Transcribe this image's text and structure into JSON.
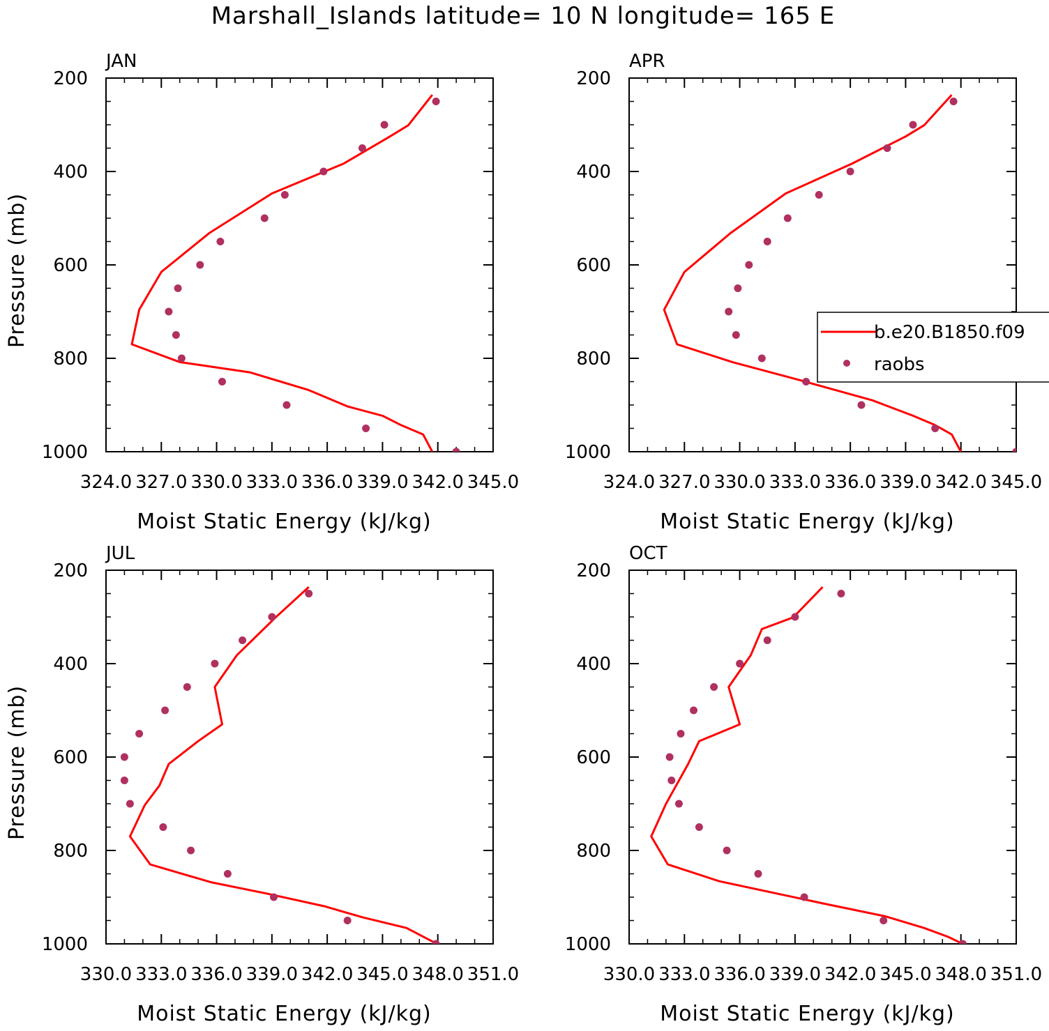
{
  "figure": {
    "title": "Marshall_Islands  latitude= 10 N longitude= 165 E"
  },
  "colors": {
    "model_line": "#ff0000",
    "raobs_marker": "#b03060",
    "axis": "#000000"
  },
  "legend": {
    "entries": [
      {
        "label": "b.e20.B1850.f09",
        "style": "line"
      },
      {
        "label": "raobs",
        "style": "marker"
      }
    ]
  },
  "chart_data": [
    {
      "type": "line",
      "panel_label": "JAN",
      "xlabel": "Moist Static Energy (kJ/kg)",
      "ylabel": "Pressure (mb)",
      "xlim": [
        324.0,
        345.0
      ],
      "ylim": [
        1000,
        200
      ],
      "y_reversed": true,
      "x_ticks": [
        "324.0",
        "327.0",
        "330.0",
        "333.0",
        "336.0",
        "339.0",
        "342.0",
        "345.0"
      ],
      "y_ticks": [
        "200",
        "400",
        "600",
        "800",
        "1000"
      ],
      "series": [
        {
          "name": "b.e20.B1850.f09",
          "style": "line",
          "x": [
            341.7,
            340.4,
            339.4,
            336.9,
            333.0,
            329.6,
            327.0,
            325.8,
            325.4,
            328.0,
            331.8,
            335.0,
            337.1,
            339.0,
            340.0,
            341.2,
            341.7
          ],
          "y": [
            236,
            301,
            325,
            383,
            447,
            532,
            615,
            696,
            770,
            808,
            830,
            868,
            903,
            923,
            943,
            963,
            1000
          ]
        },
        {
          "name": "raobs",
          "style": "marker",
          "x": [
            341.9,
            339.1,
            337.9,
            335.8,
            333.7,
            332.6,
            330.2,
            329.1,
            327.9,
            327.4,
            327.8,
            328.1,
            330.3,
            333.8,
            338.1,
            343.0
          ],
          "y": [
            250,
            300,
            350,
            400,
            450,
            500,
            550,
            600,
            650,
            700,
            750,
            800,
            850,
            900,
            950,
            1000
          ]
        }
      ]
    },
    {
      "type": "line",
      "panel_label": "APR",
      "xlabel": "Moist Static Energy (kJ/kg)",
      "ylabel": "",
      "xlim": [
        324.0,
        345.0
      ],
      "ylim": [
        1000,
        200
      ],
      "y_reversed": true,
      "x_ticks": [
        "324.0",
        "327.0",
        "330.0",
        "333.0",
        "336.0",
        "339.0",
        "342.0",
        "345.0"
      ],
      "y_ticks": [
        "200",
        "400",
        "600",
        "800",
        "1000"
      ],
      "series": [
        {
          "name": "b.e20.B1850.f09",
          "style": "line",
          "x": [
            341.5,
            340.0,
            339.0,
            336.1,
            332.5,
            329.5,
            327.0,
            325.9,
            326.6,
            329.6,
            333.1,
            337.2,
            339.4,
            340.6,
            341.5,
            342.0
          ],
          "y": [
            236,
            301,
            325,
            383,
            447,
            532,
            615,
            696,
            770,
            808,
            845,
            890,
            923,
            943,
            963,
            1000
          ]
        },
        {
          "name": "raobs",
          "style": "marker",
          "x": [
            341.6,
            339.4,
            338.0,
            336.0,
            334.3,
            332.6,
            331.5,
            330.5,
            329.9,
            329.4,
            329.8,
            331.2,
            333.6,
            336.6,
            340.6,
            345.0
          ],
          "y": [
            250,
            300,
            350,
            400,
            450,
            500,
            550,
            600,
            650,
            700,
            750,
            800,
            850,
            900,
            950,
            1000
          ]
        }
      ]
    },
    {
      "type": "line",
      "panel_label": "JUL",
      "xlabel": "Moist Static Energy (kJ/kg)",
      "ylabel": "Pressure (mb)",
      "xlim": [
        330.0,
        351.0
      ],
      "ylim": [
        1000,
        200
      ],
      "y_reversed": true,
      "x_ticks": [
        "330.0",
        "333.0",
        "336.0",
        "339.0",
        "342.0",
        "345.0",
        "348.0",
        "351.0"
      ],
      "y_ticks": [
        "200",
        "400",
        "600",
        "800",
        "1000"
      ],
      "series": [
        {
          "name": "b.e20.B1850.f09",
          "style": "line",
          "x": [
            341.0,
            339.2,
            337.1,
            335.9,
            336.3,
            335.0,
            333.4,
            332.9,
            332.1,
            331.3,
            332.4,
            335.7,
            338.8,
            341.9,
            343.9,
            346.3,
            348.1
          ],
          "y": [
            236,
            301,
            382,
            450,
            530,
            566,
            615,
            661,
            703,
            770,
            830,
            868,
            893,
            920,
            943,
            966,
            1003
          ]
        },
        {
          "name": "raobs",
          "style": "marker",
          "x": [
            341.0,
            339.0,
            337.4,
            335.9,
            334.4,
            333.2,
            331.8,
            331.0,
            331.0,
            331.3,
            333.1,
            334.6,
            336.6,
            339.1,
            343.1,
            347.9
          ],
          "y": [
            250,
            300,
            350,
            400,
            450,
            500,
            550,
            600,
            650,
            700,
            750,
            800,
            850,
            900,
            950,
            1000
          ]
        }
      ]
    },
    {
      "type": "line",
      "panel_label": "OCT",
      "xlabel": "Moist Static Energy (kJ/kg)",
      "ylabel": "",
      "xlim": [
        330.0,
        351.0
      ],
      "ylim": [
        1000,
        200
      ],
      "y_reversed": true,
      "x_ticks": [
        "330.0",
        "333.0",
        "336.0",
        "339.0",
        "342.0",
        "345.0",
        "348.0",
        "351.0"
      ],
      "y_ticks": [
        "200",
        "400",
        "600",
        "800",
        "1000"
      ],
      "series": [
        {
          "name": "b.e20.B1850.f09",
          "style": "line",
          "x": [
            340.5,
            338.9,
            337.2,
            336.6,
            335.4,
            336.0,
            333.8,
            333.2,
            332.0,
            331.2,
            332.1,
            334.9,
            338.1,
            340.7,
            343.9,
            346.0,
            347.3,
            348.1
          ],
          "y": [
            236,
            301,
            326,
            382,
            450,
            530,
            566,
            615,
            700,
            770,
            830,
            866,
            893,
            915,
            941,
            966,
            985,
            1000
          ]
        },
        {
          "name": "raobs",
          "style": "marker",
          "x": [
            341.5,
            339.0,
            337.5,
            336.0,
            334.6,
            333.5,
            332.8,
            332.2,
            332.3,
            332.7,
            333.8,
            335.3,
            337.0,
            339.5,
            343.8,
            348.1
          ],
          "y": [
            250,
            300,
            350,
            400,
            450,
            500,
            550,
            600,
            650,
            700,
            750,
            800,
            850,
            900,
            950,
            1000
          ]
        }
      ]
    }
  ]
}
